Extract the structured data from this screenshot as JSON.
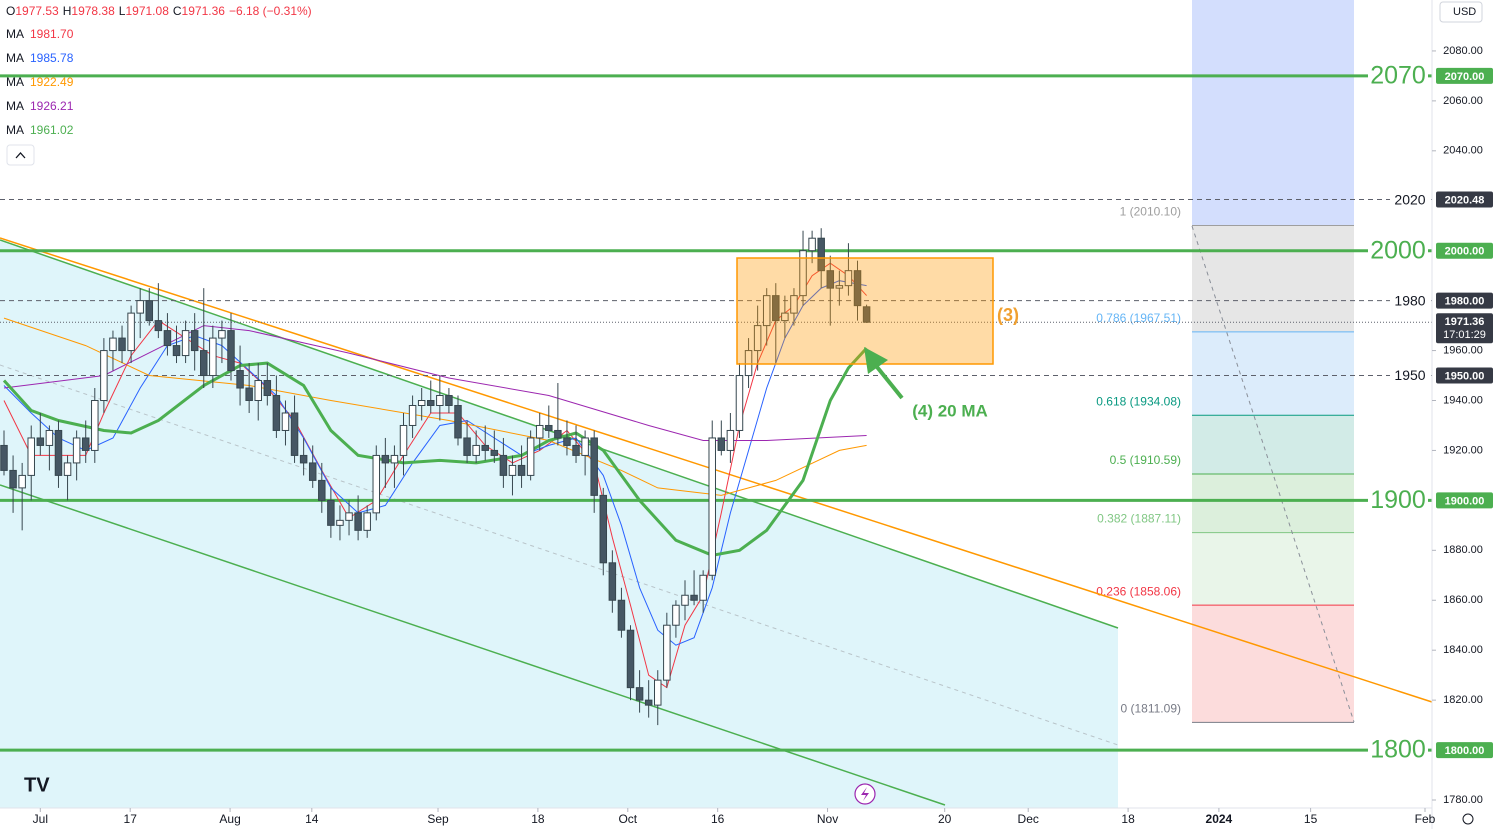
{
  "chart_data": {
    "type": "candlestick",
    "header": {
      "items": [
        {
          "key": "O",
          "value": "1977.53"
        },
        {
          "key": "H",
          "value": "1978.38"
        },
        {
          "key": "L",
          "value": "1971.08"
        },
        {
          "key": "C",
          "value": "1971.36"
        }
      ],
      "change": "−6.18 (−0.31%)"
    },
    "currency": "USD",
    "xlim": [
      -0.44,
      157.27
    ],
    "ylim": [
      1776.8,
      2100.4
    ],
    "xticks": [
      {
        "value": 4.0,
        "label": "Jul"
      },
      {
        "value": 13.9,
        "label": "17"
      },
      {
        "value": 24.9,
        "label": "Aug"
      },
      {
        "value": 33.9,
        "label": "14"
      },
      {
        "value": 47.8,
        "label": "Sep"
      },
      {
        "value": 58.8,
        "label": "18"
      },
      {
        "value": 68.7,
        "label": "Oct"
      },
      {
        "value": 78.6,
        "label": "16"
      },
      {
        "value": 90.7,
        "label": "Nov"
      },
      {
        "value": 103.6,
        "label": "20"
      },
      {
        "value": 112.8,
        "label": "Dec"
      },
      {
        "value": 123.8,
        "label": "18"
      },
      {
        "value": 133.8,
        "label": "2024"
      },
      {
        "value": 143.9,
        "label": "15"
      },
      {
        "value": 156.5,
        "label": "Feb"
      }
    ],
    "yticks": [
      {
        "value": 2080,
        "label": "2080.00"
      },
      {
        "value": 2060,
        "label": "2060.00"
      },
      {
        "value": 2040,
        "label": "2040.00"
      },
      {
        "value": 1960,
        "label": "1960.00"
      },
      {
        "value": 1940,
        "label": "1940.00"
      },
      {
        "value": 1920,
        "label": "1920.00"
      },
      {
        "value": 1880,
        "label": "1880.00"
      },
      {
        "value": 1860,
        "label": "1860.00"
      },
      {
        "value": 1840,
        "label": "1840.00"
      },
      {
        "value": 1820,
        "label": "1820.00"
      },
      {
        "value": 1780,
        "label": "1780.00"
      }
    ],
    "candles": {
      "x": [
        0,
        1,
        2,
        3,
        4,
        5,
        6,
        7,
        8,
        9,
        10,
        11,
        12,
        13,
        14,
        15,
        16,
        17,
        18,
        19,
        20,
        21,
        22,
        23,
        24,
        25,
        26,
        27,
        28,
        29,
        30,
        31,
        32,
        33,
        34,
        35,
        36,
        37,
        38,
        39,
        40,
        41,
        42,
        43,
        44,
        45,
        46,
        47,
        48,
        49,
        50,
        51,
        52,
        53,
        54,
        55,
        56,
        57,
        58,
        59,
        60,
        61,
        62,
        63,
        64,
        65,
        66,
        67,
        68,
        69,
        70,
        71,
        72,
        73,
        74,
        75,
        76,
        77,
        78,
        79,
        80,
        81,
        82,
        83,
        84,
        85,
        86,
        87,
        88,
        89,
        90,
        91,
        92,
        93,
        94,
        95
      ],
      "open": [
        1922,
        1912,
        1905,
        1910,
        1925,
        1922,
        1928,
        1910,
        1915,
        1925,
        1920,
        1940,
        1960,
        1965,
        1960,
        1975,
        1980,
        1972,
        1968,
        1962,
        1958,
        1968,
        1960,
        1950,
        1965,
        1968,
        1952,
        1945,
        1940,
        1948,
        1942,
        1928,
        1935,
        1918,
        1915,
        1908,
        1900,
        1890,
        1892,
        1895,
        1888,
        1895,
        1918,
        1915,
        1918,
        1930,
        1938,
        1940,
        1938,
        1942,
        1938,
        1925,
        1918,
        1922,
        1920,
        1918,
        1910,
        1914,
        1910,
        1925,
        1930,
        1928,
        1925,
        1922,
        1918,
        1925,
        1902,
        1875,
        1860,
        1848,
        1825,
        1820,
        1818,
        1828,
        1850,
        1858,
        1862,
        1860,
        1870,
        1925,
        1920,
        1928,
        1950,
        1960,
        1970,
        1982,
        1972,
        1975,
        1982,
        2000,
        2005,
        1992,
        1985,
        1986,
        1992,
        1977.53
      ],
      "high": [
        1928,
        1918,
        1915,
        1930,
        1935,
        1930,
        1932,
        1918,
        1928,
        1932,
        1945,
        1965,
        1968,
        1970,
        1978,
        1985,
        1985,
        1987,
        1975,
        1970,
        1972,
        1975,
        1985,
        1970,
        1972,
        1975,
        1962,
        1955,
        1955,
        1955,
        1950,
        1940,
        1942,
        1925,
        1922,
        1915,
        1905,
        1898,
        1900,
        1902,
        1898,
        1922,
        1925,
        1922,
        1935,
        1942,
        1945,
        1948,
        1950,
        1945,
        1942,
        1932,
        1928,
        1930,
        1928,
        1925,
        1918,
        1922,
        1928,
        1935,
        1938,
        1947,
        1932,
        1930,
        1928,
        1928,
        1905,
        1880,
        1865,
        1850,
        1832,
        1828,
        1832,
        1855,
        1860,
        1868,
        1872,
        1872,
        1932,
        1932,
        1935,
        1955,
        1965,
        1978,
        1985,
        1987,
        1982,
        1985,
        2008,
        2008,
        2009,
        1998,
        1992,
        2003,
        1996,
        1978.38
      ],
      "low": [
        1910,
        1895,
        1888,
        1900,
        1918,
        1912,
        1905,
        1900,
        1908,
        1915,
        1915,
        1935,
        1952,
        1955,
        1955,
        1965,
        1970,
        1965,
        1958,
        1955,
        1955,
        1952,
        1945,
        1945,
        1955,
        1948,
        1938,
        1935,
        1932,
        1938,
        1925,
        1922,
        1915,
        1910,
        1905,
        1895,
        1885,
        1884,
        1886,
        1884,
        1885,
        1892,
        1905,
        1905,
        1910,
        1925,
        1932,
        1935,
        1932,
        1935,
        1922,
        1915,
        1915,
        1916,
        1915,
        1905,
        1902,
        1905,
        1908,
        1920,
        1925,
        1922,
        1918,
        1915,
        1910,
        1895,
        1870,
        1855,
        1845,
        1820,
        1815,
        1813,
        1810,
        1825,
        1845,
        1852,
        1858,
        1855,
        1868,
        1918,
        1915,
        1925,
        1945,
        1952,
        1962,
        1955,
        1965,
        1970,
        1978,
        1995,
        1985,
        1970,
        1978,
        1982,
        1972,
        1971.08
      ],
      "close": [
        1912,
        1905,
        1910,
        1925,
        1922,
        1928,
        1910,
        1915,
        1925,
        1920,
        1940,
        1960,
        1965,
        1960,
        1975,
        1980,
        1972,
        1968,
        1962,
        1958,
        1968,
        1960,
        1950,
        1965,
        1968,
        1952,
        1945,
        1940,
        1948,
        1942,
        1928,
        1935,
        1918,
        1915,
        1908,
        1900,
        1890,
        1892,
        1895,
        1888,
        1895,
        1918,
        1915,
        1918,
        1930,
        1938,
        1940,
        1938,
        1942,
        1938,
        1925,
        1918,
        1922,
        1920,
        1918,
        1910,
        1914,
        1910,
        1925,
        1930,
        1928,
        1925,
        1922,
        1918,
        1925,
        1902,
        1875,
        1860,
        1848,
        1825,
        1820,
        1818,
        1828,
        1850,
        1858,
        1862,
        1860,
        1870,
        1925,
        1920,
        1928,
        1950,
        1960,
        1970,
        1982,
        1972,
        1975,
        1982,
        2000,
        2005,
        1992,
        1985,
        1986,
        1992,
        1978,
        1971.36
      ]
    },
    "series": [
      {
        "name": "MA",
        "last": "1981.70",
        "color": "#f23645",
        "width": 1,
        "x": [
          0,
          3,
          6,
          9,
          11,
          14,
          17,
          20,
          23,
          26,
          29,
          32,
          35,
          38,
          41,
          44,
          47,
          50,
          53,
          56,
          59,
          62,
          65,
          67,
          69,
          71,
          73,
          75,
          77,
          79,
          81,
          83,
          85,
          87,
          89,
          91,
          93,
          95
        ],
        "values": [
          1940,
          1918,
          1918,
          1918,
          1935,
          1958,
          1972,
          1965,
          1958,
          1955,
          1945,
          1932,
          1912,
          1893,
          1900,
          1918,
          1935,
          1935,
          1922,
          1915,
          1920,
          1928,
          1915,
          1885,
          1858,
          1830,
          1825,
          1850,
          1862,
          1895,
          1930,
          1955,
          1972,
          1978,
          1990,
          1995,
          1990,
          1982
        ]
      },
      {
        "name": "MA",
        "last": "1985.78",
        "color": "#2962ff",
        "width": 1,
        "x": [
          0,
          3,
          6,
          9,
          12,
          15,
          18,
          21,
          24,
          27,
          30,
          33,
          36,
          39,
          42,
          45,
          48,
          51,
          54,
          57,
          60,
          63,
          66,
          68,
          70,
          72,
          74,
          76,
          78,
          80,
          82,
          84,
          86,
          88,
          90,
          92,
          95
        ],
        "values": [
          1946,
          1935,
          1925,
          1920,
          1925,
          1945,
          1962,
          1966,
          1962,
          1952,
          1942,
          1925,
          1905,
          1895,
          1898,
          1915,
          1930,
          1932,
          1925,
          1918,
          1922,
          1925,
          1910,
          1890,
          1865,
          1848,
          1842,
          1845,
          1865,
          1895,
          1920,
          1945,
          1965,
          1978,
          1985,
          1988,
          1986
        ]
      },
      {
        "name": "MA",
        "last": "1922.49",
        "color": "#ff9800",
        "width": 1,
        "x": [
          0,
          9,
          16,
          27,
          36,
          49,
          60,
          68,
          72,
          79,
          85,
          92,
          95
        ],
        "values": [
          1973,
          1962,
          1950,
          1946,
          1940,
          1932,
          1924,
          1912,
          1905,
          1902,
          1908,
          1920,
          1922
        ]
      },
      {
        "name": "MA",
        "last": "1926.21",
        "color": "#9c27b0",
        "width": 1,
        "x": [
          0,
          11,
          22,
          27,
          38,
          49,
          60,
          71,
          77,
          84,
          95
        ],
        "values": [
          1945,
          1950,
          1970,
          1968,
          1959,
          1949,
          1942,
          1930,
          1924,
          1924,
          1926
        ]
      },
      {
        "name": "MA",
        "last": "1961.02",
        "color": "#4caf50",
        "width": 3,
        "x": [
          0,
          3,
          6,
          11,
          14,
          17,
          22,
          26,
          29,
          33,
          36,
          39,
          44,
          48,
          52,
          57,
          60,
          63,
          66,
          70,
          74,
          78,
          81,
          84,
          88,
          91,
          93,
          95
        ],
        "values": [
          1948,
          1936,
          1932,
          1928,
          1927,
          1932,
          1946,
          1954,
          1955,
          1946,
          1928,
          1918,
          1915,
          1916,
          1915,
          1918,
          1924,
          1927,
          1920,
          1900,
          1884,
          1878,
          1880,
          1888,
          1908,
          1940,
          1953,
          1961
        ]
      }
    ],
    "levels": [
      {
        "value": 2070,
        "label": "2070",
        "tag": "2070.00",
        "style": "major"
      },
      {
        "value": 2020.48,
        "label": "2020",
        "tag": "2020.48",
        "style": "dashed"
      },
      {
        "value": 2000,
        "label": "2000",
        "tag": "2000.00",
        "style": "major"
      },
      {
        "value": 1980,
        "label": "1980",
        "tag": "1980.00",
        "style": "dashed"
      },
      {
        "value": 1950,
        "label": "1950",
        "tag": "1950.00",
        "style": "dashed"
      },
      {
        "value": 1900,
        "label": "1900",
        "tag": "1900.00",
        "style": "major"
      },
      {
        "value": 1800,
        "label": "1800",
        "tag": "1800.00",
        "style": "major"
      }
    ],
    "last_price": {
      "value": 1971.36,
      "tag": "1971.36",
      "countdown": "17:01:29"
    },
    "fib": [
      {
        "value": 2010.1,
        "label": "1 (2010.10)",
        "color": "#9e9e9e",
        "band": "#e6e6e6"
      },
      {
        "value": 1967.51,
        "label": "0.786 (1967.51)",
        "color": "#64b5f6",
        "band": "#dcecfb"
      },
      {
        "value": 1934.08,
        "label": "0.618 (1934.08)",
        "color": "#089981",
        "band": "#d2ebe7"
      },
      {
        "value": 1910.59,
        "label": "0.5 (1910.59)",
        "color": "#4caf50",
        "band": "#dcefdc"
      },
      {
        "value": 1887.11,
        "label": "0.382 (1887.11)",
        "color": "#81c784",
        "band": "#e9f5e9"
      },
      {
        "value": 1858.06,
        "label": "0.236 (1858.06)",
        "color": "#f23645",
        "band": "#fcdcdc"
      },
      {
        "value": 1811.09,
        "label": "0 (1811.09)",
        "color": "#787b86",
        "band": null
      }
    ],
    "annotations": {
      "box": "(3)",
      "arrow": "(4) 20 MA"
    }
  }
}
